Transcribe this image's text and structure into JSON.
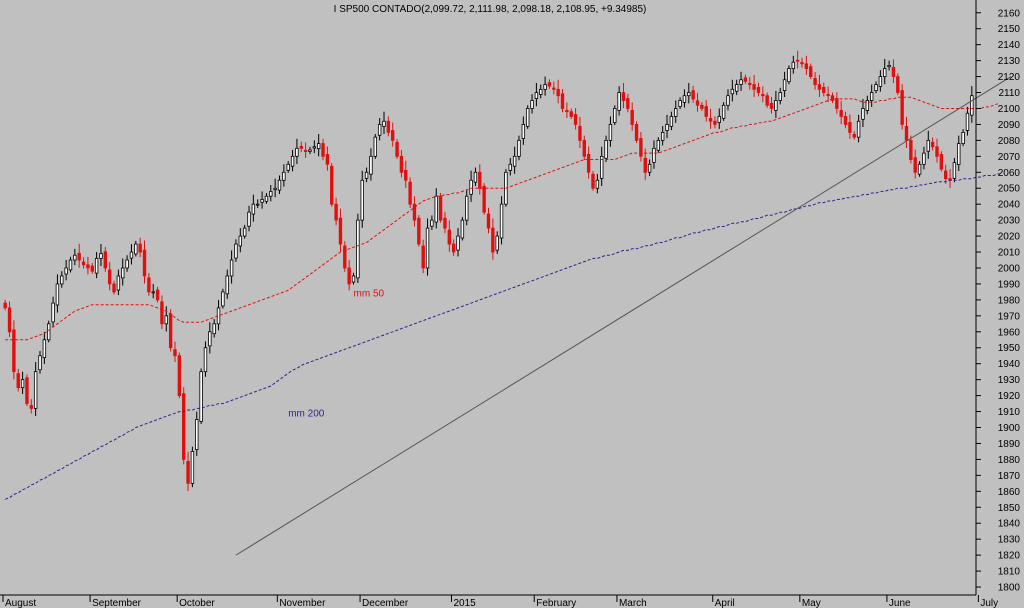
{
  "chart_data": {
    "type": "candlestick",
    "title": "I SP500 CONTADO(2,099.72, 2,111.98, 2,098.18, 2,108.95, +9.34985)",
    "ylim": [
      1795,
      2168
    ],
    "y_ticks": [
      2160,
      2150,
      2140,
      2130,
      2120,
      2110,
      2100,
      2090,
      2080,
      2070,
      2060,
      2050,
      2040,
      2030,
      2020,
      2010,
      2000,
      1990,
      1980,
      1970,
      1960,
      1950,
      1940,
      1930,
      1920,
      1910,
      1900,
      1890,
      1880,
      1870,
      1860,
      1850,
      1840,
      1830,
      1820,
      1810,
      1800
    ],
    "x_labels": [
      {
        "label": "August",
        "bar": 0
      },
      {
        "label": "September",
        "bar": 20
      },
      {
        "label": "October",
        "bar": 40
      },
      {
        "label": "November",
        "bar": 63
      },
      {
        "label": "December",
        "bar": 82
      },
      {
        "label": "2015",
        "bar": 103
      },
      {
        "label": "February",
        "bar": 122
      },
      {
        "label": "March",
        "bar": 141
      },
      {
        "label": "April",
        "bar": 163
      },
      {
        "label": "May",
        "bar": 183
      },
      {
        "label": "June",
        "bar": 203
      },
      {
        "label": "July",
        "bar": 224
      }
    ],
    "closes": [
      1975,
      1960,
      1935,
      1925,
      1930,
      1915,
      1912,
      1935,
      1945,
      1955,
      1965,
      1978,
      1990,
      1995,
      2000,
      2005,
      2008,
      2005,
      2002,
      2000,
      1998,
      2006,
      2009,
      2000,
      1990,
      1985,
      1995,
      2000,
      2005,
      2010,
      2015,
      2010,
      1995,
      1985,
      1985,
      1980,
      1965,
      1970,
      1950,
      1945,
      1920,
      1880,
      1865,
      1885,
      1905,
      1935,
      1950,
      1960,
      1965,
      1975,
      1985,
      1995,
      2005,
      2015,
      2020,
      2025,
      2035,
      2040,
      2040,
      2043,
      2045,
      2048,
      2050,
      2055,
      2060,
      2065,
      2070,
      2075,
      2075,
      2073,
      2074,
      2076,
      2078,
      2070,
      2065,
      2040,
      2030,
      2015,
      2000,
      1990,
      1995,
      2030,
      2055,
      2060,
      2070,
      2082,
      2090,
      2092,
      2085,
      2080,
      2070,
      2060,
      2055,
      2040,
      2030,
      2015,
      2000,
      2025,
      2030,
      2045,
      2030,
      2025,
      2015,
      2010,
      2020,
      2030,
      2045,
      2055,
      2060,
      2050,
      2035,
      2025,
      2010,
      2020,
      2040,
      2060,
      2065,
      2070,
      2080,
      2090,
      2100,
      2105,
      2110,
      2112,
      2115,
      2114,
      2112,
      2108,
      2100,
      2098,
      2095,
      2090,
      2080,
      2070,
      2060,
      2050,
      2055,
      2070,
      2080,
      2090,
      2100,
      2110,
      2105,
      2100,
      2090,
      2080,
      2070,
      2060,
      2065,
      2075,
      2080,
      2085,
      2090,
      2095,
      2100,
      2105,
      2108,
      2110,
      2106,
      2102,
      2100,
      2095,
      2092,
      2090,
      2095,
      2102,
      2108,
      2112,
      2115,
      2118,
      2117,
      2115,
      2112,
      2110,
      2108,
      2102,
      2100,
      2105,
      2110,
      2118,
      2125,
      2129,
      2130,
      2128,
      2125,
      2120,
      2115,
      2112,
      2110,
      2108,
      2105,
      2100,
      2095,
      2090,
      2085,
      2082,
      2092,
      2100,
      2105,
      2110,
      2115,
      2120,
      2125,
      2127,
      2120,
      2110,
      2090,
      2080,
      2068,
      2060,
      2065,
      2072,
      2080,
      2076,
      2070,
      2062,
      2056,
      2055,
      2066,
      2078,
      2085,
      2097,
      2108
    ],
    "series": [
      {
        "name": "mm 50",
        "color": "#e01010",
        "values": [
          1955,
          1955,
          1955,
          1955,
          1955,
          1955,
          1956,
          1957,
          1958,
          1959,
          1961,
          1963,
          1965,
          1967,
          1969,
          1971,
          1973,
          1974,
          1975,
          1976,
          1977,
          1977,
          1977,
          1977,
          1977,
          1977,
          1977,
          1977,
          1977,
          1977,
          1977,
          1977,
          1977,
          1977,
          1976,
          1975,
          1974,
          1973,
          1971,
          1969,
          1967,
          1966,
          1966,
          1966,
          1966,
          1966,
          1967,
          1968,
          1969,
          1970,
          1971,
          1972,
          1973,
          1974,
          1975,
          1976,
          1977,
          1978,
          1979,
          1980,
          1981,
          1982,
          1983,
          1984,
          1985,
          1986,
          1988,
          1990,
          1992,
          1994,
          1996,
          1998,
          2000,
          2002,
          2004,
          2006,
          2008,
          2010,
          2011,
          2012,
          2013,
          2014,
          2015,
          2016,
          2018,
          2020,
          2022,
          2024,
          2026,
          2028,
          2030,
          2032,
          2034,
          2036,
          2038,
          2040,
          2042,
          2043,
          2044,
          2045,
          2045,
          2046,
          2046,
          2047,
          2047,
          2048,
          2049,
          2050,
          2050,
          2050,
          2050,
          2050,
          2050,
          2050,
          2050,
          2050,
          2051,
          2052,
          2053,
          2054,
          2055,
          2056,
          2057,
          2058,
          2059,
          2060,
          2061,
          2062,
          2063,
          2064,
          2065,
          2066,
          2067,
          2068,
          2068,
          2068,
          2068,
          2068,
          2068,
          2068,
          2068,
          2069,
          2070,
          2071,
          2072,
          2072,
          2072,
          2072,
          2072,
          2072,
          2072,
          2073,
          2074,
          2075,
          2076,
          2077,
          2078,
          2079,
          2080,
          2081,
          2082,
          2083,
          2084,
          2085,
          2085,
          2086,
          2087,
          2088,
          2088,
          2089,
          2089,
          2090,
          2090,
          2091,
          2091,
          2092,
          2092,
          2093,
          2094,
          2095,
          2096,
          2097,
          2098,
          2099,
          2100,
          2101,
          2102,
          2103,
          2104,
          2105,
          2106,
          2106,
          2106,
          2106,
          2106,
          2106,
          2105,
          2104,
          2104,
          2104,
          2104,
          2105,
          2105,
          2106,
          2106,
          2107,
          2107,
          2107,
          2107,
          2106,
          2105,
          2104,
          2103,
          2102,
          2101,
          2100,
          2100,
          2100,
          2100,
          2100,
          2100,
          2100,
          2100,
          2100,
          2100,
          2101,
          2101,
          2102,
          2103
        ]
      },
      {
        "name": "mm 200",
        "color": "#3a1c8c",
        "values": [
          1855,
          1856,
          1858,
          1859,
          1861,
          1862,
          1864,
          1865,
          1867,
          1868,
          1870,
          1871,
          1873,
          1874,
          1876,
          1877,
          1879,
          1880,
          1882,
          1883,
          1885,
          1886,
          1888,
          1889,
          1891,
          1892,
          1894,
          1895,
          1897,
          1898,
          1900,
          1901,
          1902,
          1903,
          1904,
          1905,
          1906,
          1907,
          1908,
          1909,
          1910,
          1910,
          1911,
          1911,
          1912,
          1912,
          1913,
          1914,
          1914,
          1915,
          1915,
          1916,
          1917,
          1918,
          1919,
          1920,
          1921,
          1922,
          1923,
          1924,
          1925,
          1926,
          1928,
          1930,
          1932,
          1934,
          1936,
          1937,
          1939,
          1940,
          1941,
          1942,
          1943,
          1944,
          1945,
          1946,
          1947,
          1948,
          1949,
          1950,
          1951,
          1952,
          1953,
          1954,
          1955,
          1956,
          1957,
          1958,
          1959,
          1960,
          1961,
          1962,
          1963,
          1964,
          1965,
          1966,
          1967,
          1968,
          1969,
          1970,
          1971,
          1972,
          1973,
          1974,
          1975,
          1976,
          1977,
          1978,
          1979,
          1980,
          1981,
          1982,
          1983,
          1984,
          1985,
          1986,
          1987,
          1988,
          1989,
          1990,
          1991,
          1992,
          1993,
          1994,
          1995,
          1996,
          1997,
          1998,
          1999,
          2000,
          2001,
          2002,
          2003,
          2004,
          2005,
          2006,
          2006,
          2007,
          2008,
          2008,
          2009,
          2010,
          2011,
          2011,
          2012,
          2012,
          2013,
          2014,
          2014,
          2015,
          2016,
          2016,
          2017,
          2018,
          2019,
          2019,
          2020,
          2021,
          2022,
          2022,
          2023,
          2024,
          2024,
          2025,
          2026,
          2026,
          2027,
          2028,
          2028,
          2029,
          2029,
          2030,
          2031,
          2031,
          2032,
          2033,
          2033,
          2034,
          2035,
          2035,
          2036,
          2037,
          2037,
          2038,
          2039,
          2039,
          2040,
          2041,
          2041,
          2042,
          2042,
          2043,
          2043,
          2044,
          2044,
          2045,
          2045,
          2046,
          2046,
          2047,
          2047,
          2048,
          2048,
          2049,
          2049,
          2050,
          2050,
          2050,
          2051,
          2051,
          2052,
          2052,
          2053,
          2053,
          2054,
          2054,
          2054,
          2055,
          2055,
          2055,
          2056,
          2056,
          2056,
          2057,
          2057,
          2058,
          2058,
          2058,
          2059,
          2059
        ]
      }
    ],
    "annotations": [
      {
        "text": "mm 50",
        "color": "#e01010",
        "bar": 80,
        "value": 1982
      },
      {
        "text": "mm 200",
        "color": "#3a1c8c",
        "bar": 65,
        "value": 1907
      }
    ],
    "trendline": {
      "start": {
        "bar": 53,
        "value": 1820
      },
      "end": {
        "bar": 231,
        "value": 2120
      }
    },
    "grid": false,
    "colors": {
      "up": "#000000",
      "down": "#e01010",
      "background": "#c0c0c0",
      "trendline": "#555555"
    }
  }
}
